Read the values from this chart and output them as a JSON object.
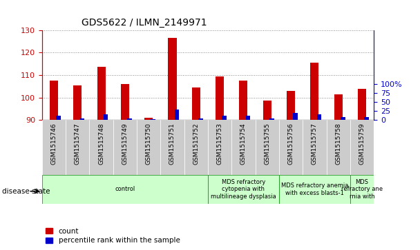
{
  "title": "GDS5622 / ILMN_2149971",
  "samples": [
    "GSM1515746",
    "GSM1515747",
    "GSM1515748",
    "GSM1515749",
    "GSM1515750",
    "GSM1515751",
    "GSM1515752",
    "GSM1515753",
    "GSM1515754",
    "GSM1515755",
    "GSM1515756",
    "GSM1515757",
    "GSM1515758",
    "GSM1515759"
  ],
  "counts": [
    107.5,
    105.5,
    113.5,
    106.0,
    91.0,
    126.5,
    104.5,
    109.5,
    107.5,
    98.5,
    103.0,
    115.5,
    101.5,
    104.0
  ],
  "percentile_ranks_pct": [
    5.0,
    2.0,
    6.0,
    2.0,
    1.0,
    12.0,
    2.0,
    5.0,
    5.0,
    2.0,
    8.0,
    6.0,
    3.0,
    3.0
  ],
  "ymin": 90,
  "ymax": 130,
  "yticks_left": [
    90,
    100,
    110,
    120,
    130
  ],
  "yticks_right_vals": [
    0,
    10,
    20,
    30,
    40
  ],
  "yticks_right_labels": [
    "0",
    "25",
    "50",
    "75",
    "100%"
  ],
  "bar_width": 0.35,
  "count_color": "#cc0000",
  "percentile_color": "#0000cc",
  "grid_color": "#888888",
  "tick_bg_color": "#cccccc",
  "disease_groups": [
    {
      "label": "control",
      "start": 0,
      "end": 7
    },
    {
      "label": "MDS refractory\ncytopenia with\nmultilineage dysplasia",
      "start": 7,
      "end": 10
    },
    {
      "label": "MDS refractory anemia\nwith excess blasts-1",
      "start": 10,
      "end": 13
    },
    {
      "label": "MDS\nrefractory ane\nrnia with",
      "start": 13,
      "end": 14
    }
  ],
  "disease_state_label": "disease state",
  "legend_count": "count",
  "legend_percentile": "percentile rank within the sample",
  "group_color": "#ccffcc",
  "group_border_color": "#008800"
}
